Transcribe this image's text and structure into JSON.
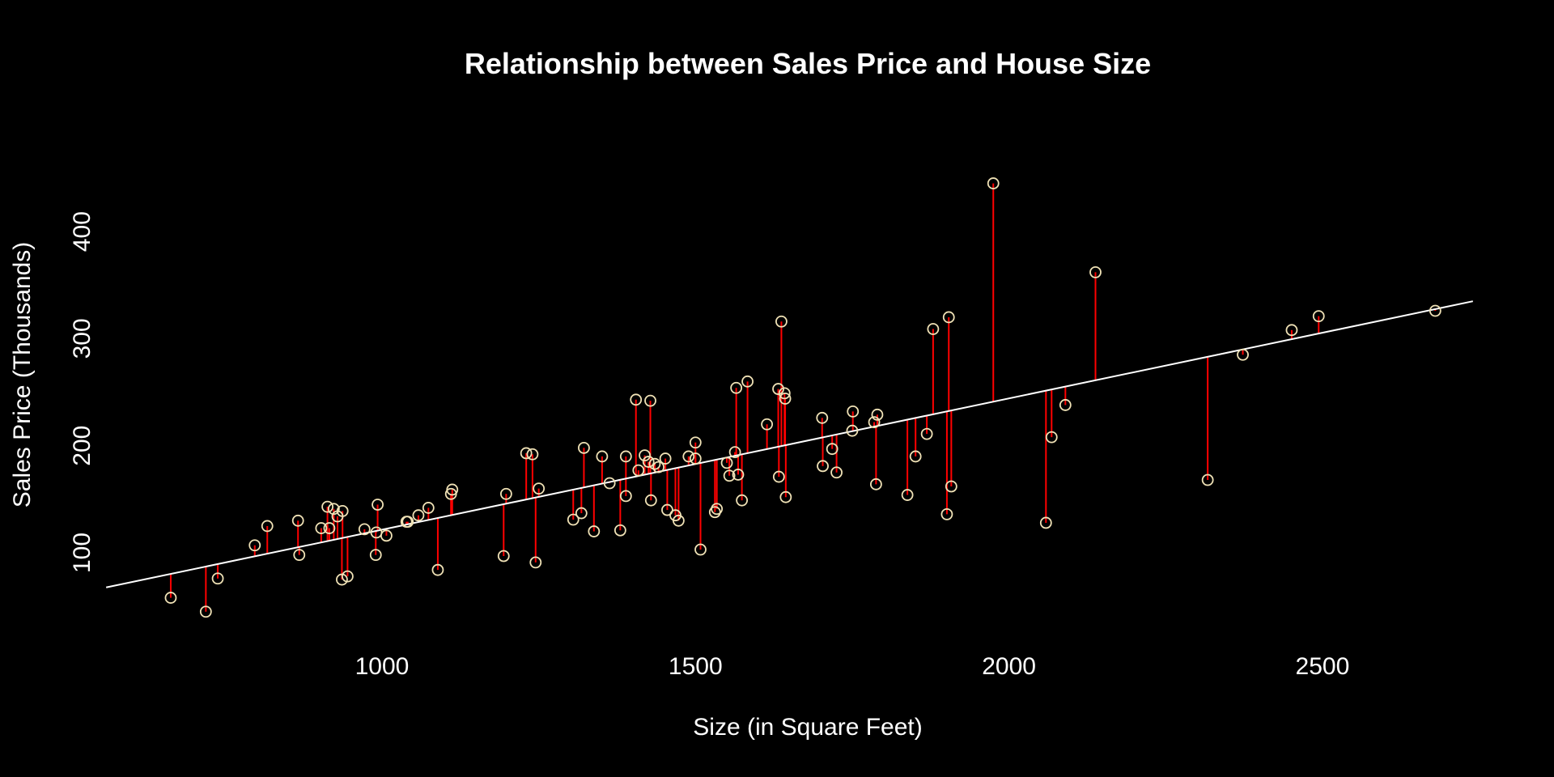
{
  "chart_data": {
    "type": "scatter",
    "title": "Relationship between Sales Price and House Size",
    "xlabel": "Size (in Square Feet)",
    "ylabel": "Sales Price (Thousands)",
    "xlim": [
      550,
      2750
    ],
    "ylim": [
      10,
      480
    ],
    "x_ticks": [
      1000,
      1500,
      2000,
      2500
    ],
    "y_ticks": [
      100,
      200,
      300,
      400
    ],
    "grid": false,
    "legend": "none",
    "colors": {
      "background": "#000000",
      "points": "#f0e2b6",
      "residuals": "#ff0000",
      "fit_line": "#ffffff",
      "text": "#ffffff"
    },
    "fit_line": {
      "intercept": -1.0,
      "slope": 0.1226
    },
    "points": [
      {
        "x": 663,
        "y": 58
      },
      {
        "x": 719,
        "y": 45
      },
      {
        "x": 738,
        "y": 76
      },
      {
        "x": 797,
        "y": 107
      },
      {
        "x": 817,
        "y": 125
      },
      {
        "x": 866,
        "y": 130
      },
      {
        "x": 868,
        "y": 98
      },
      {
        "x": 903,
        "y": 123
      },
      {
        "x": 913,
        "y": 143
      },
      {
        "x": 916,
        "y": 123
      },
      {
        "x": 923,
        "y": 141
      },
      {
        "x": 929,
        "y": 134
      },
      {
        "x": 936,
        "y": 75
      },
      {
        "x": 937,
        "y": 139
      },
      {
        "x": 945,
        "y": 78
      },
      {
        "x": 972,
        "y": 122
      },
      {
        "x": 990,
        "y": 98
      },
      {
        "x": 991,
        "y": 119
      },
      {
        "x": 993,
        "y": 145
      },
      {
        "x": 1007,
        "y": 116
      },
      {
        "x": 1039,
        "y": 129
      },
      {
        "x": 1041,
        "y": 129
      },
      {
        "x": 1058,
        "y": 135
      },
      {
        "x": 1074,
        "y": 142
      },
      {
        "x": 1089,
        "y": 84
      },
      {
        "x": 1110,
        "y": 155
      },
      {
        "x": 1112,
        "y": 159
      },
      {
        "x": 1194,
        "y": 97
      },
      {
        "x": 1198,
        "y": 155
      },
      {
        "x": 1230,
        "y": 193
      },
      {
        "x": 1240,
        "y": 192
      },
      {
        "x": 1245,
        "y": 91
      },
      {
        "x": 1250,
        "y": 160
      },
      {
        "x": 1305,
        "y": 131
      },
      {
        "x": 1318,
        "y": 137
      },
      {
        "x": 1322,
        "y": 198
      },
      {
        "x": 1338,
        "y": 120
      },
      {
        "x": 1351,
        "y": 190
      },
      {
        "x": 1363,
        "y": 165
      },
      {
        "x": 1380,
        "y": 121
      },
      {
        "x": 1389,
        "y": 153
      },
      {
        "x": 1389,
        "y": 190
      },
      {
        "x": 1405,
        "y": 243
      },
      {
        "x": 1409,
        "y": 177
      },
      {
        "x": 1419,
        "y": 191
      },
      {
        "x": 1425,
        "y": 185
      },
      {
        "x": 1428,
        "y": 242
      },
      {
        "x": 1429,
        "y": 149
      },
      {
        "x": 1435,
        "y": 183
      },
      {
        "x": 1441,
        "y": 180
      },
      {
        "x": 1452,
        "y": 188
      },
      {
        "x": 1455,
        "y": 140
      },
      {
        "x": 1468,
        "y": 135
      },
      {
        "x": 1473,
        "y": 130
      },
      {
        "x": 1489,
        "y": 190
      },
      {
        "x": 1500,
        "y": 188
      },
      {
        "x": 1500,
        "y": 203
      },
      {
        "x": 1508,
        "y": 103
      },
      {
        "x": 1531,
        "y": 138
      },
      {
        "x": 1534,
        "y": 141
      },
      {
        "x": 1550,
        "y": 184
      },
      {
        "x": 1554,
        "y": 172
      },
      {
        "x": 1563,
        "y": 194
      },
      {
        "x": 1565,
        "y": 254
      },
      {
        "x": 1568,
        "y": 173
      },
      {
        "x": 1574,
        "y": 149
      },
      {
        "x": 1583,
        "y": 260
      },
      {
        "x": 1614,
        "y": 220
      },
      {
        "x": 1632,
        "y": 253
      },
      {
        "x": 1633,
        "y": 171
      },
      {
        "x": 1637,
        "y": 316
      },
      {
        "x": 1642,
        "y": 249
      },
      {
        "x": 1643,
        "y": 244
      },
      {
        "x": 1644,
        "y": 152
      },
      {
        "x": 1702,
        "y": 226
      },
      {
        "x": 1703,
        "y": 181
      },
      {
        "x": 1718,
        "y": 197
      },
      {
        "x": 1725,
        "y": 175
      },
      {
        "x": 1750,
        "y": 214
      },
      {
        "x": 1751,
        "y": 232
      },
      {
        "x": 1785,
        "y": 222
      },
      {
        "x": 1788,
        "y": 164
      },
      {
        "x": 1790,
        "y": 229
      },
      {
        "x": 1838,
        "y": 154
      },
      {
        "x": 1851,
        "y": 190
      },
      {
        "x": 1869,
        "y": 211
      },
      {
        "x": 1879,
        "y": 309
      },
      {
        "x": 1901,
        "y": 136
      },
      {
        "x": 1904,
        "y": 320
      },
      {
        "x": 1908,
        "y": 162
      },
      {
        "x": 1975,
        "y": 445
      },
      {
        "x": 2059,
        "y": 128
      },
      {
        "x": 2068,
        "y": 208
      },
      {
        "x": 2090,
        "y": 238
      },
      {
        "x": 2138,
        "y": 362
      },
      {
        "x": 2317,
        "y": 168
      },
      {
        "x": 2373,
        "y": 285
      },
      {
        "x": 2451,
        "y": 308
      },
      {
        "x": 2494,
        "y": 321
      },
      {
        "x": 2680,
        "y": 326
      }
    ]
  }
}
